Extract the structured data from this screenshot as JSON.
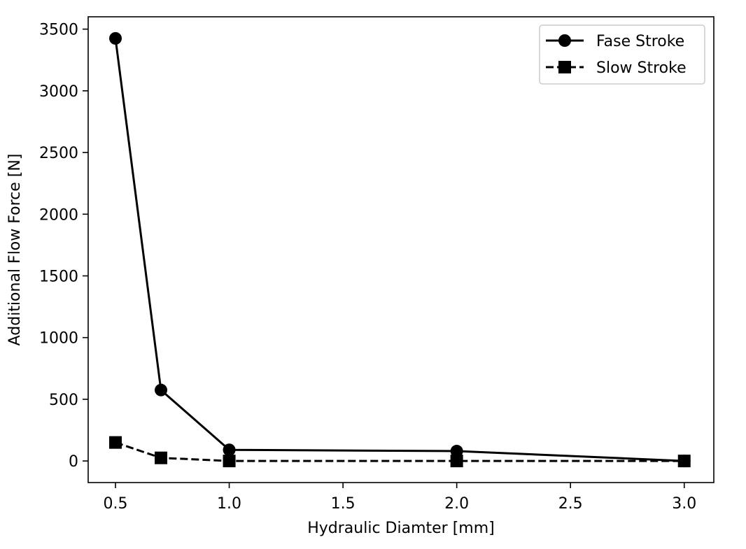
{
  "chart_data": {
    "type": "line",
    "title": "",
    "xlabel": "Hydraulic Diamter [mm]",
    "ylabel": "Additional Flow Force [N]",
    "xlim": [
      0.38,
      3.13
    ],
    "ylim": [
      -175,
      3600
    ],
    "x_ticks": [
      0.5,
      1.0,
      1.5,
      2.0,
      2.5,
      3.0
    ],
    "x_tick_labels": [
      "0.5",
      "1.0",
      "1.5",
      "2.0",
      "2.5",
      "3.0"
    ],
    "y_ticks": [
      0,
      500,
      1000,
      1500,
      2000,
      2500,
      3000,
      3500
    ],
    "y_tick_labels": [
      "0",
      "500",
      "1000",
      "1500",
      "2000",
      "2500",
      "3000",
      "3500"
    ],
    "grid": false,
    "legend_position": "top-right",
    "series": [
      {
        "name": "Fase Stroke",
        "marker": "circle",
        "line_style": "solid",
        "color": "#000000",
        "x": [
          0.5,
          0.7,
          1.0,
          2.0,
          3.0
        ],
        "y": [
          3425,
          575,
          90,
          80,
          0
        ]
      },
      {
        "name": "Slow Stroke",
        "marker": "square",
        "line_style": "dashed",
        "color": "#000000",
        "x": [
          0.5,
          0.7,
          1.0,
          2.0,
          3.0
        ],
        "y": [
          150,
          25,
          0,
          0,
          0
        ]
      }
    ]
  }
}
